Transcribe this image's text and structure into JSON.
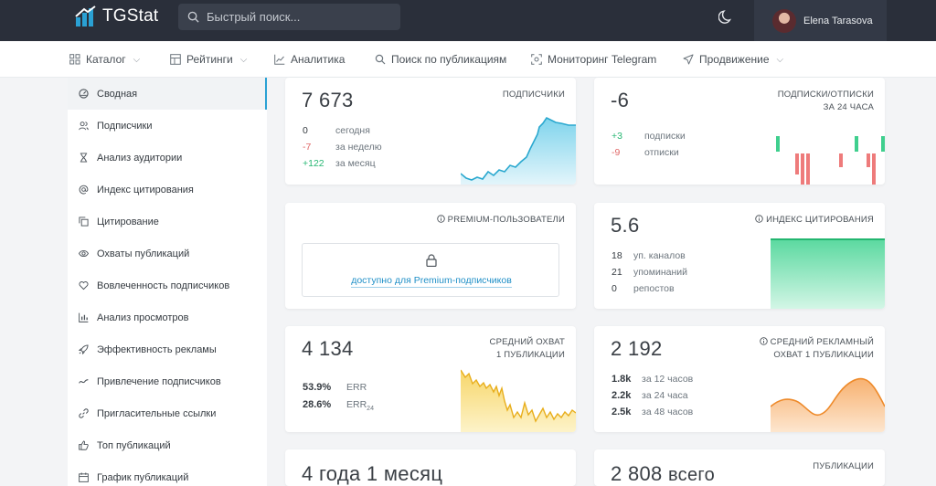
{
  "header": {
    "logo_text": "TGStat",
    "search_placeholder": "Быстрый поиск...",
    "user_name": "Elena Tarasova"
  },
  "nav": [
    {
      "label": "Каталог",
      "icon": "grid-icon",
      "dropdown": true
    },
    {
      "label": "Рейтинги",
      "icon": "table-icon",
      "dropdown": true
    },
    {
      "label": "Аналитика",
      "icon": "line-chart-icon",
      "dropdown": false
    },
    {
      "label": "Поиск по публикациям",
      "icon": "search-icon",
      "dropdown": false
    },
    {
      "label": "Мониторинг Telegram",
      "icon": "target-icon",
      "dropdown": false
    },
    {
      "label": "Продвижение",
      "icon": "send-icon",
      "dropdown": true
    }
  ],
  "sidebar": [
    {
      "label": "Сводная",
      "icon": "dashboard-icon",
      "active": true
    },
    {
      "label": "Подписчики",
      "icon": "users-icon"
    },
    {
      "label": "Анализ аудитории",
      "icon": "hourglass-icon"
    },
    {
      "label": "Индекс цитирования",
      "icon": "at-icon"
    },
    {
      "label": "Цитирование",
      "icon": "copy-icon"
    },
    {
      "label": "Охваты публикаций",
      "icon": "eye-icon"
    },
    {
      "label": "Вовлеченность подписчиков",
      "icon": "heart-icon"
    },
    {
      "label": "Анализ просмотров",
      "icon": "bar-chart-icon"
    },
    {
      "label": "Эффективность рекламы",
      "icon": "rocket-icon"
    },
    {
      "label": "Привлечение подписчиков",
      "icon": "trend-icon"
    },
    {
      "label": "Пригласительные ссылки",
      "icon": "link-icon"
    },
    {
      "label": "Топ публикаций",
      "icon": "thumbs-up-icon"
    },
    {
      "label": "График публикаций",
      "icon": "calendar-icon"
    }
  ],
  "cards": {
    "subscribers": {
      "value": "7 673",
      "caption": "ПОДПИСЧИКИ",
      "rows": [
        {
          "value": "0",
          "label": "сегодня",
          "tone": "neutral"
        },
        {
          "value": "-7",
          "label": "за неделю",
          "tone": "red"
        },
        {
          "value": "+122",
          "label": "за месяц",
          "tone": "green"
        }
      ]
    },
    "daily": {
      "value": "-6",
      "caption_line1": "ПОДПИСКИ/ОТПИСКИ",
      "caption_line2": "ЗА 24 ЧАСА",
      "rows": [
        {
          "value": "+3",
          "label": "подписки",
          "tone": "green"
        },
        {
          "value": "-9",
          "label": "отписки",
          "tone": "red"
        }
      ]
    },
    "premium": {
      "caption": "PREMIUM-ПОЛЬЗОВАТЕЛИ",
      "link": "доступно для Premium-подписчиков"
    },
    "citation": {
      "value": "5.6",
      "caption": "ИНДЕКС ЦИТИРОВАНИЯ",
      "rows": [
        {
          "value": "18",
          "label": "уп. каналов"
        },
        {
          "value": "21",
          "label": "упоминаний"
        },
        {
          "value": "0",
          "label": "репостов"
        }
      ]
    },
    "reach": {
      "value": "4 134",
      "caption_line1": "СРЕДНИЙ ОХВАТ",
      "caption_line2": "1 ПУБЛИКАЦИИ",
      "rows": [
        {
          "value": "53.9%",
          "label": "ERR"
        },
        {
          "value": "28.6%",
          "label": "ERR",
          "sub": "24"
        }
      ]
    },
    "ad_reach": {
      "value": "2 192",
      "caption_line1": "СРЕДНИЙ РЕКЛАМНЫЙ",
      "caption_line2": "ОХВАТ 1 ПУБЛИКАЦИИ",
      "rows": [
        {
          "value": "1.8k",
          "label": "за 12 часов"
        },
        {
          "value": "2.2k",
          "label": "за 24 часа"
        },
        {
          "value": "2.5k",
          "label": "за 48 часов"
        }
      ]
    },
    "age": {
      "value": "4 года 1 месяц"
    },
    "posts": {
      "value": "2 808",
      "value_suffix": "всего",
      "caption": "ПУБЛИКАЦИИ"
    }
  },
  "colors": {
    "topbar": "#2a2f3a",
    "accent": "#2aa1d4",
    "green": "#27b773",
    "red": "#e06868",
    "subscribers_chart": "#3ec1e0",
    "citation_chart": "#3fcf8e",
    "reach_chart": "#f2c033",
    "ad_reach_chart": "#f2953a"
  }
}
